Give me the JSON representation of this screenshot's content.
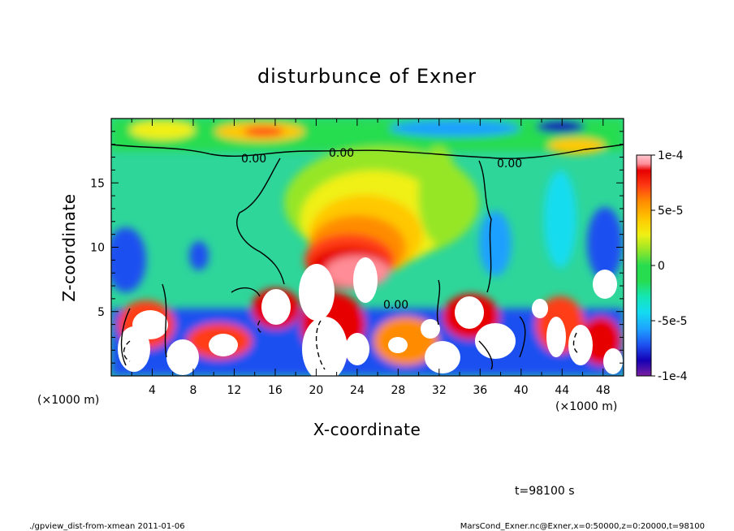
{
  "chart_data": {
    "type": "heatmap",
    "title": "disturbunce of Exner",
    "xlabel": "X-coordinate",
    "ylabel": "Z-coordinate",
    "x_unit_label": "(×1000 m)",
    "x_unit_label_right": "(×1000 m)",
    "xlim": [
      0,
      50
    ],
    "ylim": [
      0,
      20
    ],
    "x_ticks": [
      "4",
      "8",
      "12",
      "16",
      "20",
      "24",
      "28",
      "32",
      "36",
      "40",
      "44",
      "48"
    ],
    "y_ticks": [
      "5",
      "10",
      "15"
    ],
    "colorbar": {
      "range": [
        -0.0001,
        0.0001
      ],
      "tick_labels": [
        "1e-4",
        "5e-5",
        "0",
        "-5e-5",
        "-1e-4"
      ],
      "colors": [
        "#7a1fa0",
        "#1400b4",
        "#1e50f0",
        "#1ea0ff",
        "#14dcf0",
        "#14e6b4",
        "#28dc50",
        "#96e628",
        "#f0f014",
        "#ffc800",
        "#ff8c00",
        "#ff3c14",
        "#e60000",
        "#ff8c96",
        "#ffc8d2"
      ]
    },
    "contour_labels": [
      "0.00",
      "0.00",
      "0.00",
      "0.00"
    ],
    "time_label": "t=98100 s",
    "footer_left": "./gpview_dist-from-xmean  2011-01-06",
    "footer_right": "MarsCond_Exner.nc@Exner,x=0:50000,z=0:20000,t=98100"
  }
}
